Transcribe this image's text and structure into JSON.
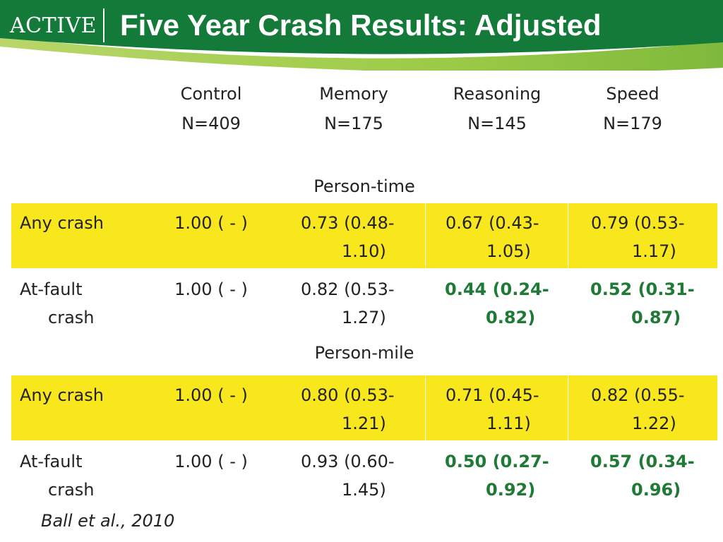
{
  "header": {
    "logo_text": "ACTIVE",
    "title": "Five Year Crash Results:  Adjusted",
    "colors": {
      "dark_green": "#137a3a",
      "light_green": "#8cc63f"
    }
  },
  "columns": [
    {
      "name": "Control",
      "n": "N=409"
    },
    {
      "name": "Memory",
      "n": "N=175"
    },
    {
      "name": "Reasoning",
      "n": "N=145"
    },
    {
      "name": "Speed",
      "n": "N=179"
    }
  ],
  "sections": [
    {
      "label": "Person-time",
      "rows": [
        {
          "label": [
            "Any crash",
            ""
          ],
          "control": "1.00 ( - )",
          "memory": [
            "0.73 (0.48-",
            "1.10)"
          ],
          "reasoning": [
            "0.67 (0.43-",
            "1.05)"
          ],
          "speed": [
            "0.79 (0.53-",
            "1.17)"
          ]
        },
        {
          "label": [
            "At-fault",
            "crash"
          ],
          "control": "1.00 ( - )",
          "memory": [
            "0.82 (0.53-",
            "1.27)"
          ],
          "reasoning": [
            "0.44 (0.24-",
            "0.82)"
          ],
          "speed": [
            "0.52 (0.31-",
            "0.87)"
          ]
        }
      ]
    },
    {
      "label": "Person-mile",
      "rows": [
        {
          "label": [
            "Any crash",
            ""
          ],
          "control": "1.00 ( - )",
          "memory": [
            "0.80 (0.53-",
            "1.21)"
          ],
          "reasoning": [
            "0.71 (0.45-",
            "1.11)"
          ],
          "speed": [
            "0.82 (0.55-",
            "1.22)"
          ]
        },
        {
          "label": [
            "At-fault",
            "crash"
          ],
          "control": "1.00 ( - )",
          "memory": [
            "0.93 (0.60-",
            "1.45)"
          ],
          "reasoning": [
            "0.50 (0.27-",
            "0.92)"
          ],
          "speed": [
            "0.57 (0.34-",
            "0.96)"
          ]
        }
      ]
    }
  ],
  "highlight_color": "#f8e71c",
  "significant_color": "#1f7a35",
  "citation": "Ball et al., 2010"
}
